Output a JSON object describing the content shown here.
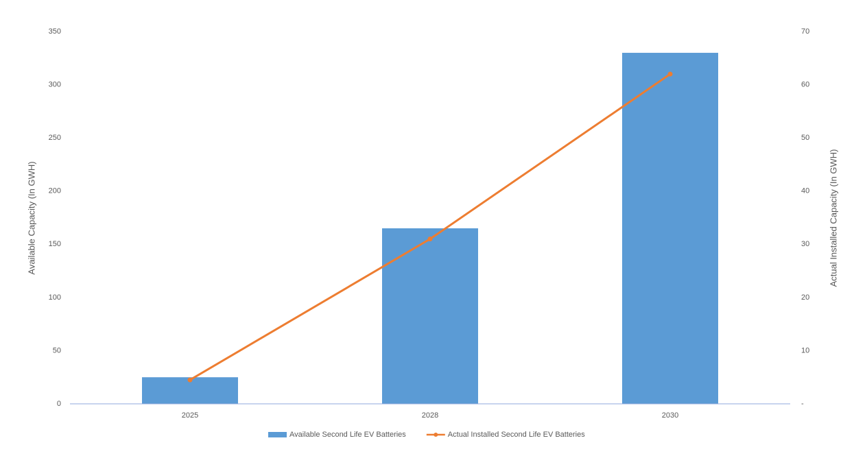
{
  "chart_data": {
    "type": "bar",
    "categories": [
      "2025",
      "2028",
      "2030"
    ],
    "series": [
      {
        "name": "Available Second Life EV Batteries",
        "type": "bar",
        "color": "#5b9bd5",
        "values": [
          25,
          165,
          330
        ]
      },
      {
        "name": "Actual Installed Second Life EV Batteries",
        "type": "line",
        "color": "#ed7d31",
        "axis": "y2",
        "values": [
          4.5,
          31,
          62
        ]
      }
    ],
    "ylabel": "Available Capacity (In GWH)",
    "y2label": "Actual Installed Capacity (In GWH)",
    "ylim": [
      0,
      350
    ],
    "yticks": [
      0,
      50,
      100,
      150,
      200,
      250,
      300,
      350
    ],
    "y2lim": [
      0,
      70
    ],
    "y2ticks": [
      {
        "value": 0,
        "label": "-"
      },
      10,
      20,
      30,
      40,
      50,
      60,
      70
    ],
    "grid": false,
    "legend": "bottom"
  }
}
